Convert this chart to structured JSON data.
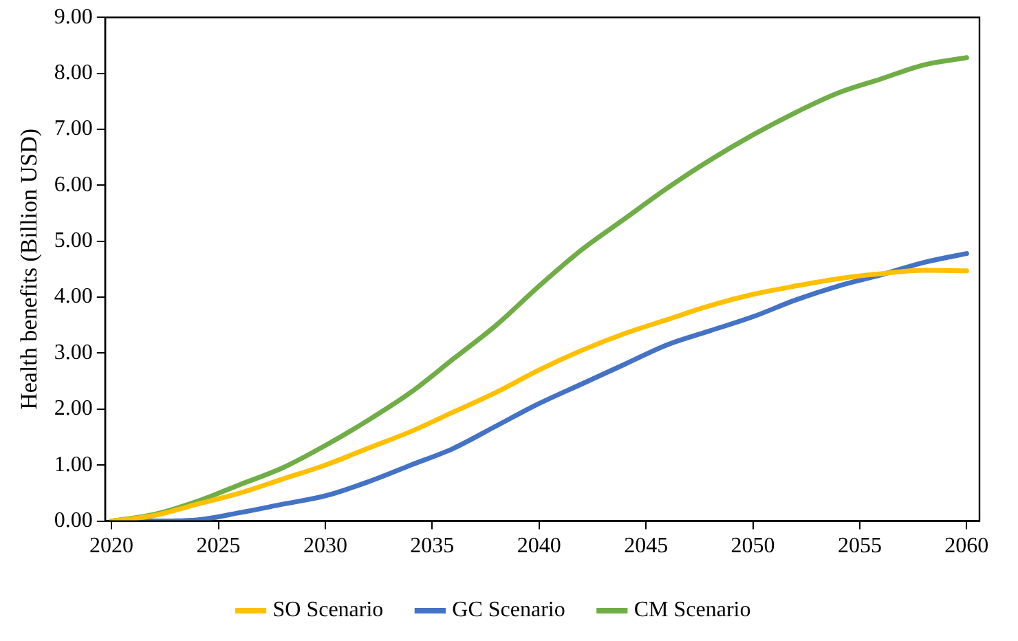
{
  "chart_data": {
    "type": "line",
    "ylabel": "Health benefits (Billion USD)",
    "x": [
      2020,
      2022,
      2024,
      2026,
      2028,
      2030,
      2032,
      2034,
      2036,
      2038,
      2040,
      2042,
      2044,
      2046,
      2048,
      2050,
      2052,
      2054,
      2056,
      2058,
      2060
    ],
    "series": [
      {
        "name": "SO Scenario",
        "color": "#ffc000",
        "values": [
          0,
          0.1,
          0.3,
          0.5,
          0.75,
          1.0,
          1.3,
          1.6,
          1.95,
          2.3,
          2.7,
          3.05,
          3.35,
          3.6,
          3.85,
          4.05,
          4.2,
          4.33,
          4.42,
          4.48,
          4.47
        ]
      },
      {
        "name": "GC Scenario",
        "color": "#4472c4",
        "values": [
          0,
          0,
          0.02,
          0.15,
          0.3,
          0.45,
          0.7,
          1.0,
          1.3,
          1.7,
          2.1,
          2.45,
          2.8,
          3.15,
          3.4,
          3.65,
          3.95,
          4.2,
          4.4,
          4.62,
          4.78
        ]
      },
      {
        "name": "CM Scenario",
        "color": "#70ad47",
        "values": [
          0,
          0.12,
          0.35,
          0.65,
          0.95,
          1.35,
          1.8,
          2.3,
          2.9,
          3.5,
          4.2,
          4.85,
          5.4,
          5.95,
          6.45,
          6.9,
          7.3,
          7.65,
          7.9,
          8.15,
          8.28
        ]
      }
    ],
    "xlim": [
      2019.7,
      2060.6
    ],
    "xticks": [
      2020,
      2025,
      2030,
      2035,
      2040,
      2045,
      2050,
      2055,
      2060
    ],
    "ylim": [
      0,
      9
    ],
    "yticks": [
      {
        "value": 0,
        "label": "0.00"
      },
      {
        "value": 1,
        "label": "1.00"
      },
      {
        "value": 2,
        "label": "2.00"
      },
      {
        "value": 3,
        "label": "3.00"
      },
      {
        "value": 4,
        "label": "4.00"
      },
      {
        "value": 5,
        "label": "5.00"
      },
      {
        "value": 6,
        "label": "6.00"
      },
      {
        "value": 7,
        "label": "7.00"
      },
      {
        "value": 8,
        "label": "8.00"
      },
      {
        "value": 9,
        "label": "9.00"
      }
    ],
    "grid": false,
    "legend": "bottom",
    "marker": "none",
    "line_style": "solid"
  }
}
